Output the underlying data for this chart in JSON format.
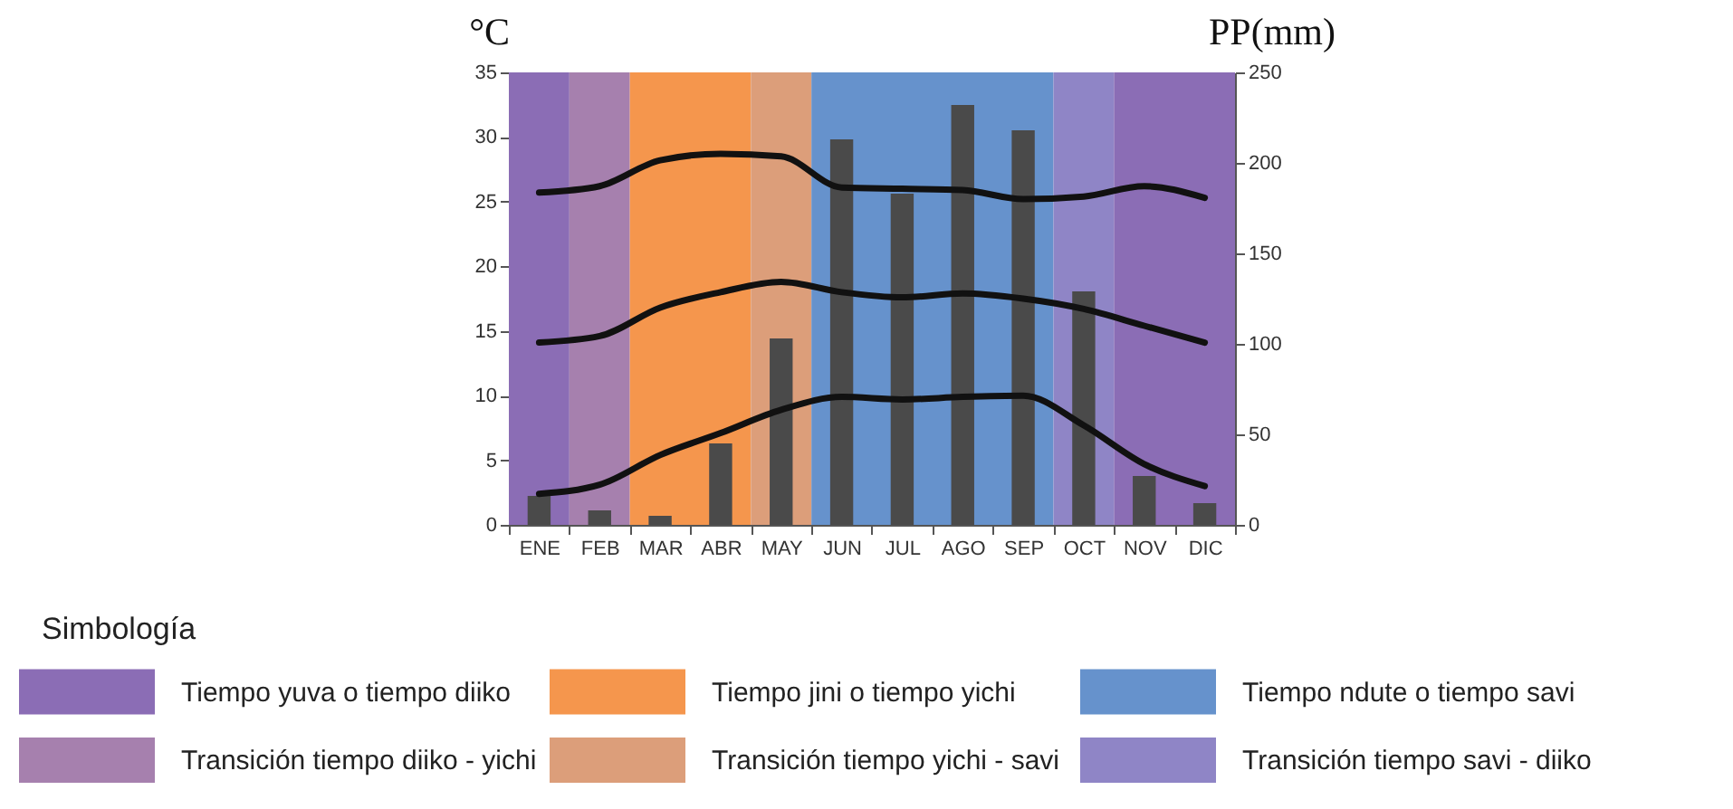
{
  "chart_data": {
    "type": "bar",
    "categories": [
      "ENE",
      "FEB",
      "MAR",
      "ABR",
      "MAY",
      "JUN",
      "JUL",
      "AGO",
      "SEP",
      "OCT",
      "NOV",
      "DIC"
    ],
    "ylabel": "°C",
    "y2label": "PP(mm)",
    "legend_title": "Simbología",
    "legend": "bottom",
    "ylim": [
      0,
      35
    ],
    "yticks": [
      0,
      5,
      10,
      15,
      20,
      25,
      30,
      35
    ],
    "y2lim": [
      0,
      250
    ],
    "y2ticks": [
      0,
      50,
      100,
      150,
      200,
      250
    ],
    "series": [
      {
        "axis": "y2",
        "color": "#4a4a4a",
        "values": [
          16,
          8,
          5,
          45,
          103,
          213,
          183,
          232,
          218,
          129,
          27,
          12
        ]
      },
      {
        "type": "line",
        "axis": "y",
        "color": "#111111",
        "values": [
          25.7,
          26.2,
          28.2,
          28.7,
          28.5,
          26.1,
          26.0,
          25.9,
          25.2,
          25.4,
          26.2,
          25.3
        ]
      },
      {
        "type": "line",
        "axis": "y",
        "color": "#111111",
        "values": [
          14.1,
          14.6,
          16.8,
          18.0,
          18.8,
          18.0,
          17.6,
          17.9,
          17.5,
          16.7,
          15.4,
          14.1
        ]
      },
      {
        "type": "line",
        "axis": "y",
        "color": "#111111",
        "values": [
          2.4,
          3.1,
          5.4,
          7.1,
          8.9,
          9.9,
          9.7,
          9.9,
          10.0,
          7.7,
          4.7,
          3.0
        ]
      }
    ],
    "bands": [
      {
        "axis": "x",
        "from": "ENE",
        "to": "ENE",
        "label": "Tiempo yuva o tiempo diiko",
        "color": "#8b6db5"
      },
      {
        "axis": "x",
        "from": "FEB",
        "to": "FEB",
        "label": "Transición tiempo diiko - yichi",
        "color": "#a680ae"
      },
      {
        "axis": "x",
        "from": "MAR",
        "to": "ABR",
        "label": "Tiempo jini o tiempo yichi",
        "color": "#f5964d"
      },
      {
        "axis": "x",
        "from": "MAY",
        "to": "MAY",
        "label": "Transición tiempo yichi - savi",
        "color": "#dc9e7a"
      },
      {
        "axis": "x",
        "from": "JUN",
        "to": "SEP",
        "label": "Tiempo ndute o tiempo savi",
        "color": "#6692cc"
      },
      {
        "axis": "x",
        "from": "OCT",
        "to": "OCT",
        "label": "Transición tiempo savi -  diiko",
        "color": "#8f85c6"
      },
      {
        "axis": "x",
        "from": "NOV",
        "to": "DIC",
        "color": "#8b6db5"
      }
    ]
  }
}
